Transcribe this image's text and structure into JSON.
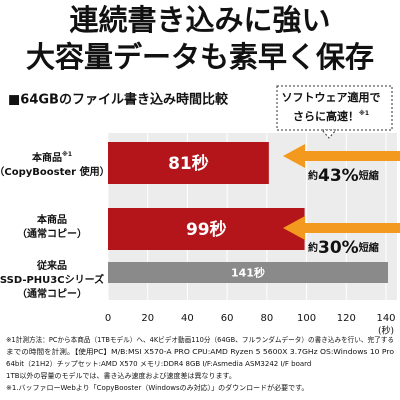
{
  "chart_data": {
    "type": "barh",
    "headline": [
      "連続書き込みに強い",
      "大容量データも素早く保存"
    ],
    "title": "■64GBのファイル書き込み時間比較",
    "callout": {
      "lines": [
        "ソフトウェア適用で",
        "さらに高速！"
      ],
      "note": "※1"
    },
    "categories": [
      {
        "lines": [
          "本商品",
          "（CopyBooster 使用）"
        ],
        "note": "※1"
      },
      {
        "lines": [
          "本商品",
          "（通常コピー）"
        ]
      },
      {
        "lines": [
          "従来品",
          "SSD-PHU3Cシリーズ",
          "（通常コピー）"
        ]
      }
    ],
    "values": [
      81,
      99,
      141
    ],
    "value_labels": [
      "81秒",
      "99秒",
      "141秒"
    ],
    "colors": [
      "#b3151b",
      "#b3151b",
      "#8a8a8a"
    ],
    "annotations": [
      {
        "prefix": "約",
        "main": "43%",
        "suffix": "短縮"
      },
      {
        "prefix": "約",
        "main": "30%",
        "suffix": "短縮"
      }
    ],
    "arrow_color": "#f39a1e",
    "xlim": [
      0,
      140
    ],
    "xticks": [
      0,
      20,
      40,
      60,
      80,
      100,
      120,
      140
    ],
    "xlabel": "(秒)",
    "grid": true,
    "footnotes": [
      "※1計測方法：PCから本商品（1TBモデル）へ、4Kビデオ動画110分（64GB、フルランダムデータ）の書き込みを行い、完了する",
      "までの時間を計測。【使用PC】M/B:MSI X570-A PRO  CPU:AMD Ryzen 5 5600X 3.7GHz  OS:Windows 10 Pro",
      "64bit（21H2）チップセット:AMD X570  メモリ:DDR4 8GB  I/F:Asmedia ASM3242 I/F board",
      "1TB以外の容量のモデルでは、書き込み速度および速度差は異なります。",
      "※1.バッファローWebより「CopyBooster（Windowsのみ対応）」のダウンロードが必要です。"
    ]
  }
}
